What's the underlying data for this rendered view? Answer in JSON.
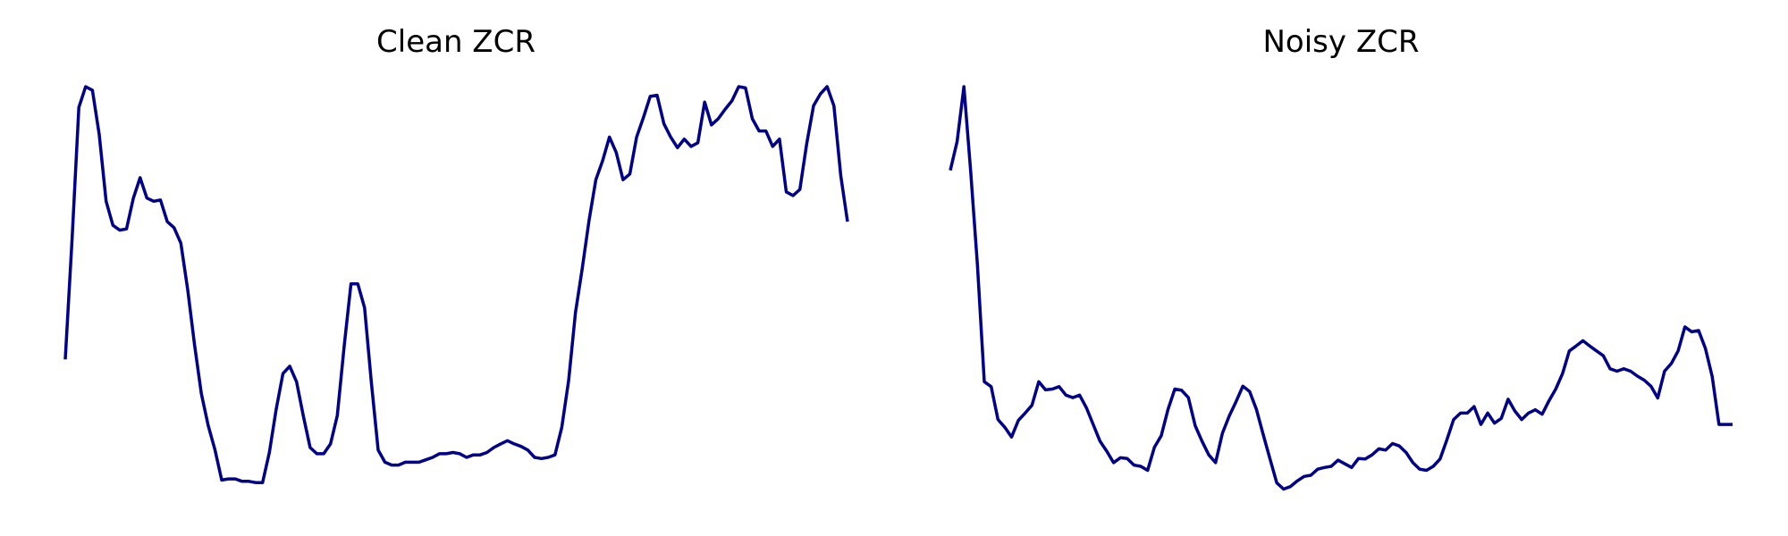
{
  "colors": {
    "background": "#ffffff",
    "line": "#00008b",
    "title": "#000000"
  },
  "chart_data": [
    {
      "type": "line",
      "title": "Clean ZCR",
      "xlabel": "",
      "ylabel": "",
      "axes_visible": false,
      "grid": false,
      "legend": "none",
      "xlim": [
        0,
        115
      ],
      "ylim": [
        0,
        1
      ],
      "x": [
        0,
        1,
        2,
        3,
        4,
        5,
        6,
        7,
        8,
        9,
        10,
        11,
        12,
        13,
        14,
        15,
        16,
        17,
        18,
        19,
        20,
        21,
        22,
        23,
        24,
        25,
        26,
        27,
        28,
        29,
        30,
        31,
        32,
        33,
        34,
        35,
        36,
        37,
        38,
        39,
        40,
        41,
        42,
        43,
        44,
        45,
        46,
        47,
        48,
        49,
        50,
        51,
        52,
        53,
        54,
        55,
        56,
        57,
        58,
        59,
        60,
        61,
        62,
        63,
        64,
        65,
        66,
        67,
        68,
        69,
        70,
        71,
        72,
        73,
        74,
        75,
        76,
        77,
        78,
        79,
        80,
        81,
        82,
        83,
        84,
        85,
        86,
        87,
        88,
        89,
        90,
        91,
        92,
        93,
        94,
        95,
        96,
        97,
        98,
        99,
        100,
        101,
        102,
        103,
        104,
        105,
        106,
        107,
        108,
        109,
        110,
        111,
        112,
        113,
        114,
        115
      ],
      "series": [
        {
          "values": [
            0.329,
            0.624,
            0.949,
            1.0,
            0.991,
            0.882,
            0.718,
            0.659,
            0.647,
            0.65,
            0.725,
            0.776,
            0.726,
            0.718,
            0.721,
            0.668,
            0.653,
            0.615,
            0.5,
            0.365,
            0.245,
            0.167,
            0.107,
            0.032,
            0.035,
            0.035,
            0.029,
            0.029,
            0.026,
            0.026,
            0.1,
            0.206,
            0.294,
            0.312,
            0.274,
            0.19,
            0.112,
            0.097,
            0.097,
            0.121,
            0.191,
            0.362,
            0.515,
            0.515,
            0.456,
            0.272,
            0.106,
            0.076,
            0.069,
            0.069,
            0.076,
            0.076,
            0.076,
            0.082,
            0.088,
            0.097,
            0.097,
            0.1,
            0.097,
            0.088,
            0.094,
            0.094,
            0.1,
            0.112,
            0.121,
            0.129,
            0.121,
            0.115,
            0.106,
            0.088,
            0.085,
            0.088,
            0.094,
            0.162,
            0.276,
            0.444,
            0.553,
            0.671,
            0.771,
            0.818,
            0.876,
            0.838,
            0.771,
            0.785,
            0.876,
            0.924,
            0.976,
            0.979,
            0.909,
            0.876,
            0.85,
            0.871,
            0.853,
            0.862,
            0.962,
            0.906,
            0.921,
            0.944,
            0.965,
            1.0,
            0.997,
            0.921,
            0.891,
            0.891,
            0.853,
            0.871,
            0.741,
            0.732,
            0.747,
            0.859,
            0.953,
            0.982,
            1.0,
            0.953,
            0.782,
            0.668
          ]
        }
      ]
    },
    {
      "type": "line",
      "title": "Noisy ZCR",
      "xlabel": "",
      "ylabel": "",
      "axes_visible": false,
      "grid": false,
      "legend": "none",
      "xlim": [
        0,
        115
      ],
      "ylim": [
        0,
        1
      ],
      "x": [
        0,
        1,
        2,
        3,
        4,
        5,
        6,
        7,
        8,
        9,
        10,
        11,
        12,
        13,
        14,
        15,
        16,
        17,
        18,
        19,
        20,
        21,
        22,
        23,
        24,
        25,
        26,
        27,
        28,
        29,
        30,
        31,
        32,
        33,
        34,
        35,
        36,
        37,
        38,
        39,
        40,
        41,
        42,
        43,
        44,
        45,
        46,
        47,
        48,
        49,
        50,
        51,
        52,
        53,
        54,
        55,
        56,
        57,
        58,
        59,
        60,
        61,
        62,
        63,
        64,
        65,
        66,
        67,
        68,
        69,
        70,
        71,
        72,
        73,
        74,
        75,
        76,
        77,
        78,
        79,
        80,
        81,
        82,
        83,
        84,
        85,
        86,
        87,
        88,
        89,
        90,
        91,
        92,
        93,
        94,
        95,
        96,
        97,
        98,
        99,
        100,
        101,
        102,
        103,
        104,
        105,
        106,
        107,
        108,
        109,
        110,
        111,
        112,
        113,
        114,
        115
      ],
      "series": [
        {
          "values": [
            0.794,
            0.865,
            1.0,
            0.791,
            0.559,
            0.274,
            0.262,
            0.181,
            0.162,
            0.138,
            0.179,
            0.197,
            0.216,
            0.274,
            0.254,
            0.256,
            0.262,
            0.241,
            0.235,
            0.241,
            0.21,
            0.169,
            0.128,
            0.103,
            0.075,
            0.087,
            0.085,
            0.069,
            0.066,
            0.056,
            0.113,
            0.141,
            0.206,
            0.256,
            0.253,
            0.235,
            0.166,
            0.128,
            0.094,
            0.075,
            0.147,
            0.19,
            0.225,
            0.263,
            0.25,
            0.206,
            0.144,
            0.084,
            0.025,
            0.01,
            0.016,
            0.03,
            0.041,
            0.044,
            0.059,
            0.063,
            0.066,
            0.081,
            0.072,
            0.063,
            0.085,
            0.084,
            0.094,
            0.109,
            0.106,
            0.122,
            0.116,
            0.1,
            0.075,
            0.059,
            0.056,
            0.066,
            0.084,
            0.131,
            0.181,
            0.197,
            0.197,
            0.213,
            0.169,
            0.197,
            0.172,
            0.184,
            0.231,
            0.202,
            0.181,
            0.197,
            0.205,
            0.194,
            0.227,
            0.256,
            0.294,
            0.35,
            0.362,
            0.375,
            0.362,
            0.35,
            0.338,
            0.306,
            0.3,
            0.306,
            0.3,
            0.288,
            0.278,
            0.263,
            0.234,
            0.3,
            0.319,
            0.35,
            0.409,
            0.397,
            0.4,
            0.356,
            0.287,
            0.169,
            0.169,
            0.169
          ]
        }
      ]
    }
  ]
}
